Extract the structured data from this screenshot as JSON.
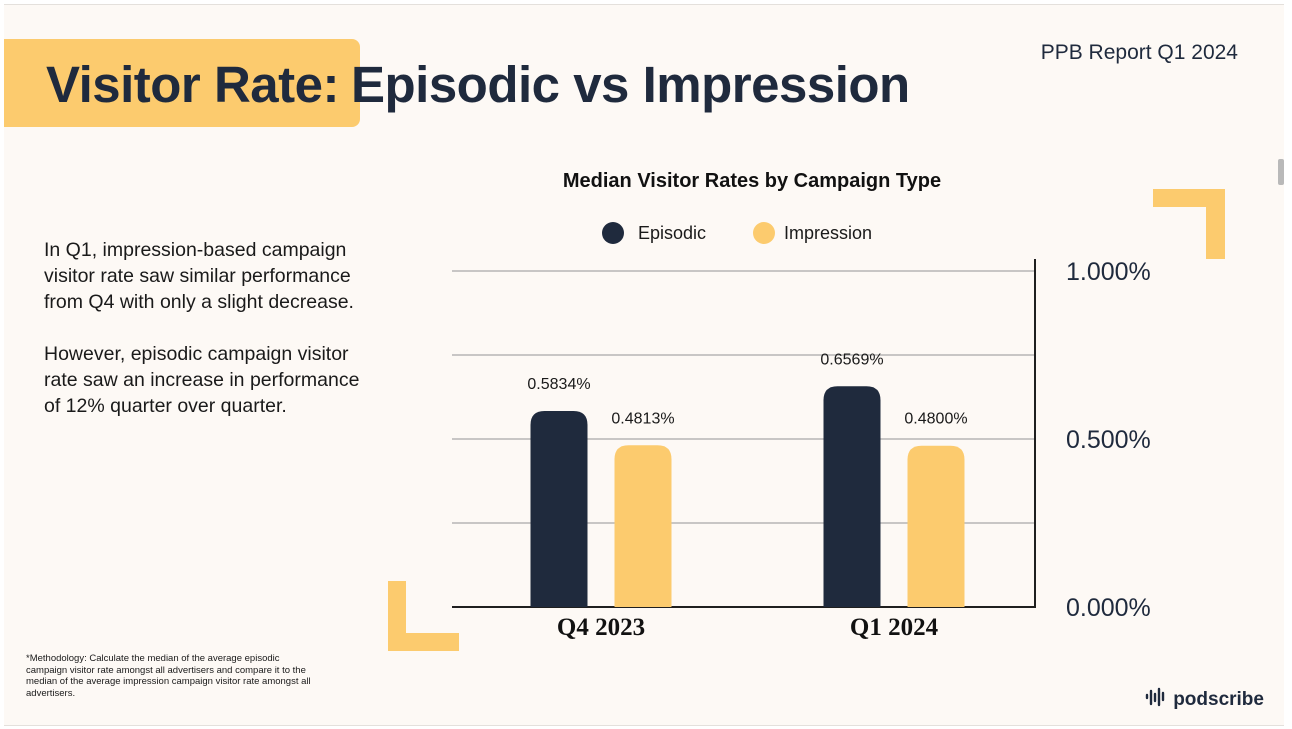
{
  "header": {
    "title_highlight": "Visitor Rate:",
    "title_rest": "Episodic vs Impression",
    "report_label": "PPB Report Q1 2024"
  },
  "body": {
    "paragraph_1": "In Q1, impression-based campaign visitor rate saw similar performance from Q4 with only a slight decrease.",
    "paragraph_2": "However, episodic campaign visitor rate saw an increase in performance of 12% quarter over quarter."
  },
  "footnote": {
    "methodology": "*Methodology: Calculate the median of the average episodic campaign visitor rate amongst all advertisers and compare it to the median of the average impression campaign visitor rate amongst all advertisers."
  },
  "brand": {
    "name": "podscribe",
    "icon": "waveform-icon"
  },
  "colors": {
    "slide_bg": "#fdf9f5",
    "accent": "#fccb6e",
    "navy": "#1f2a3d",
    "grid": "#b5b5b5"
  },
  "chart_data": {
    "type": "bar",
    "title": "Median Visitor Rates by Campaign Type",
    "categories": [
      "Q4 2023",
      "Q1 2024"
    ],
    "series": [
      {
        "name": "Episodic",
        "color": "#1f2a3d",
        "values": [
          0.5834,
          0.6569
        ],
        "labels": [
          "0.5834%",
          "0.6569%"
        ]
      },
      {
        "name": "Impression",
        "color": "#fccb6e",
        "values": [
          0.4813,
          0.48
        ],
        "labels": [
          "0.4813%",
          "0.4800%"
        ]
      }
    ],
    "y_ticks": [
      {
        "value": 1.0,
        "label": "1.000%"
      },
      {
        "value": 0.5,
        "label": "0.500%"
      },
      {
        "value": 0.0,
        "label": "0.000%"
      }
    ],
    "ylim": [
      0,
      1.0
    ],
    "grid": true,
    "legend_position": "top-center",
    "y_axis_position": "right"
  }
}
